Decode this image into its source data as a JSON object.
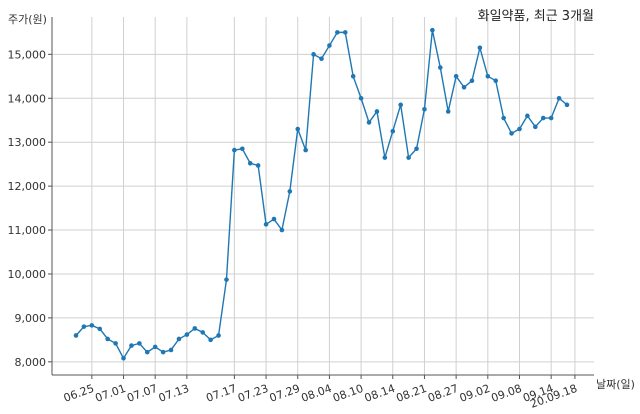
{
  "chart_data": {
    "type": "line",
    "title": "화일약품, 최근 3개월",
    "xlabel": "날짜(일)",
    "ylabel": "주가(원)",
    "ylim": [
      7700,
      15850
    ],
    "yticks": [
      8000,
      9000,
      10000,
      11000,
      12000,
      13000,
      14000,
      15000
    ],
    "ytick_labels": [
      "8,000",
      "9,000",
      "10,000",
      "11,000",
      "12,000",
      "13,000",
      "14,000",
      "15,000"
    ],
    "xtick_labels": [
      "06.25",
      "07.01",
      "07.07",
      "07.13",
      "07.17",
      "07.23",
      "07.29",
      "08.04",
      "08.10",
      "08.14",
      "08.21",
      "08.27",
      "09.02",
      "09.08",
      "09.14",
      "20.09.18"
    ],
    "xtick_index": [
      2,
      6,
      10,
      14,
      20,
      24,
      28,
      32,
      36,
      40,
      44,
      48,
      52,
      56,
      60,
      63
    ],
    "grid": true,
    "line_color": "#1f77b4",
    "values": [
      8600,
      8800,
      8830,
      8750,
      8520,
      8420,
      8080,
      8370,
      8420,
      8220,
      8340,
      8220,
      8270,
      8520,
      8620,
      8760,
      8670,
      8500,
      8600,
      9870,
      12820,
      12850,
      12520,
      12470,
      11130,
      11250,
      11000,
      11880,
      13300,
      12820,
      15000,
      14900,
      15200,
      15500,
      15500,
      14500,
      14000,
      13450,
      13700,
      12650,
      13250,
      13850,
      12650,
      12850,
      13750,
      15550,
      14700,
      13700,
      14500,
      14250,
      14400,
      15150,
      14500,
      14400,
      13550,
      13200,
      13300,
      13600,
      13350,
      13550,
      13550,
      14000,
      13850
    ]
  }
}
